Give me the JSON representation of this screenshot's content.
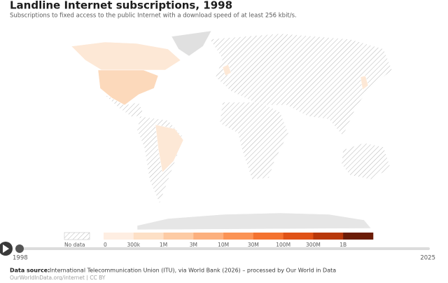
{
  "header": {
    "title": "Landline Internet subscriptions, 1998",
    "subtitle": "Subscriptions to fixed access to the public Internet with a download speed of at least 256 kbit/s."
  },
  "legend": {
    "no_data": "No data",
    "ticks": [
      "0",
      "300k",
      "1M",
      "3M",
      "10M",
      "30M",
      "100M",
      "300M",
      "1B"
    ],
    "colors": [
      "#feeee2",
      "#fde0c6",
      "#fdcba4",
      "#fcb07e",
      "#fb9355",
      "#f4722f",
      "#e05216",
      "#b8380a",
      "#6b1c06"
    ]
  },
  "timeline": {
    "start": "1998",
    "end": "2025"
  },
  "footer": {
    "source_label": "Data source:",
    "source": "International Telecommunication Union (ITU), via World Bank (2026) – processed by Our World in Data",
    "url": "OurWorldInData.org/internet | CC BY"
  }
}
